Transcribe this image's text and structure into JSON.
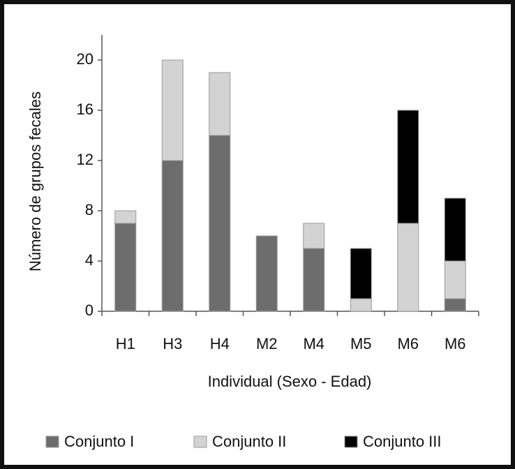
{
  "chart_data": {
    "type": "stacked_bar",
    "categories": [
      "H1",
      "H3",
      "H4",
      "M2",
      "M4",
      "M5",
      "M6",
      "M6"
    ],
    "series": [
      {
        "name": "Conjunto I",
        "color": "#6d6d6d",
        "values": [
          7,
          12,
          14,
          6,
          5,
          0,
          0,
          1
        ]
      },
      {
        "name": "Conjunto II",
        "color": "#d3d3d3",
        "values": [
          1,
          8,
          5,
          0,
          2,
          1,
          7,
          3
        ]
      },
      {
        "name": "Conjunto III",
        "color": "#000000",
        "values": [
          0,
          0,
          0,
          0,
          0,
          4,
          9,
          5
        ]
      }
    ],
    "x_label": "Individual (Sexo - Edad)",
    "y_label": "Número de grupos fecales",
    "ylim": [
      0,
      22
    ],
    "yticks": [
      0,
      4,
      8,
      12,
      16,
      20
    ],
    "legend": "bottom"
  }
}
